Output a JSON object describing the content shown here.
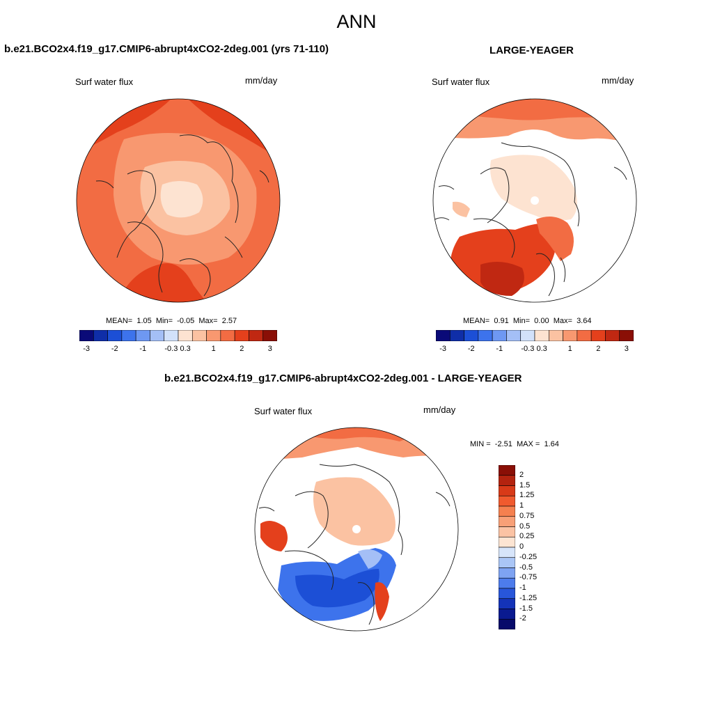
{
  "page_title": "ANN",
  "panels": [
    {
      "title": "b.e21.BCO2x4.f19_g17.CMIP6-abrupt4xCO2-2deg.001 (yrs 71-110)",
      "variable": "Surf water flux",
      "units": "mm/day",
      "stats": {
        "mean_label": "MEAN=",
        "mean": "1.05",
        "min_label": "Min=",
        "min": "-0.05",
        "max_label": "Max=",
        "max": "2.57"
      }
    },
    {
      "title": "LARGE-YEAGER",
      "variable": "Surf water flux",
      "units": "mm/day",
      "stats": {
        "mean_label": "MEAN=",
        "mean": "0.91",
        "min_label": "Min=",
        "min": "0.00",
        "max_label": "Max=",
        "max": "3.64"
      }
    },
    {
      "title": "b.e21.BCO2x4.f19_g17.CMIP6-abrupt4xCO2-2deg.001 - LARGE-YEAGER",
      "variable": "Surf water flux",
      "units": "mm/day",
      "stats": {
        "min_label": "MIN =",
        "min": "-2.51",
        "max_label": "MAX =",
        "max": "1.64"
      }
    }
  ],
  "colorbar_abs": {
    "colors": [
      "#0a0a78",
      "#0f2ea8",
      "#1c4fd6",
      "#3d73ec",
      "#6e98f2",
      "#a4bff6",
      "#d2e1fa",
      "#fde3d1",
      "#fbc2a2",
      "#f89870",
      "#f26c43",
      "#e4401c",
      "#c02812",
      "#8a0f06"
    ],
    "labels": [
      "-3",
      "-2",
      "-1",
      "-0.3",
      "0.3",
      "1",
      "2",
      "3"
    ]
  },
  "colorbar_diff": {
    "colors": [
      "#8a0f06",
      "#b3230f",
      "#d83a18",
      "#f05a2e",
      "#f5804f",
      "#f8a077",
      "#fbc3a4",
      "#fde5d3",
      "#d7e5fa",
      "#aac6f6",
      "#7ea3f2",
      "#4d7cec",
      "#2856da",
      "#1433b8",
      "#0a1a90",
      "#070b6a"
    ],
    "labels": [
      "2",
      "1.5",
      "1.25",
      "1",
      "0.75",
      "0.5",
      "0.25",
      "0",
      "-0.25",
      "-0.5",
      "-0.75",
      "-1",
      "-1.25",
      "-1.5",
      "-2"
    ]
  },
  "map_palette": {
    "deep_red": "#c02812",
    "red": "#e4401c",
    "orange_red": "#f26c43",
    "salmon": "#f89870",
    "peach": "#fbc2a2",
    "pale": "#fde3d1",
    "light_blue": "#a4bff6",
    "mid_blue": "#3d73ec",
    "blue": "#1c4fd6",
    "land": "#ffffff",
    "coast": "#222222"
  }
}
